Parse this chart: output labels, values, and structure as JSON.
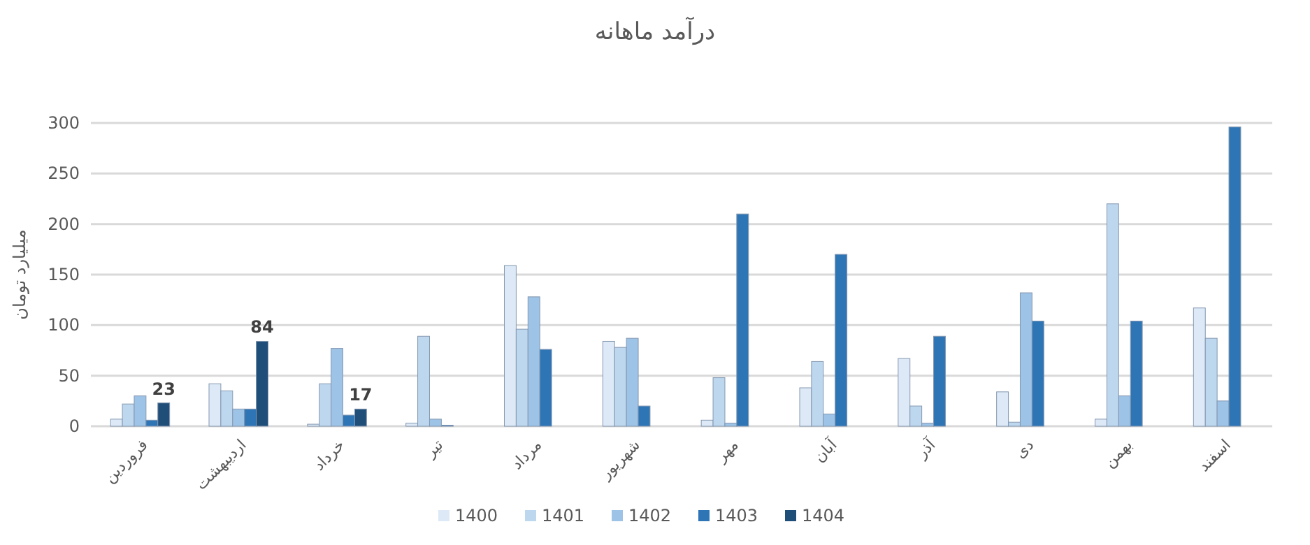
{
  "chart_data": {
    "type": "bar",
    "title": "درآمد ماهانه",
    "ylabel": "میلیارد تومان",
    "categories": [
      "فروردین",
      "اردیبهشت",
      "خرداد",
      "تیر",
      "مرداد",
      "شهریور",
      "مهر",
      "آبان",
      "آذر",
      "دی",
      "بهمن",
      "اسفند"
    ],
    "series": [
      {
        "name": "1400",
        "color": "#dde9f6",
        "values": [
          7,
          42,
          2,
          3,
          159,
          84,
          6,
          38,
          67,
          34,
          7,
          117
        ]
      },
      {
        "name": "1401",
        "color": "#bdd7ee",
        "values": [
          22,
          35,
          42,
          89,
          96,
          78,
          48,
          64,
          20,
          4,
          220,
          87
        ]
      },
      {
        "name": "1402",
        "color": "#9dc3e6",
        "values": [
          30,
          17,
          77,
          7,
          128,
          87,
          3,
          12,
          3,
          132,
          30,
          25
        ]
      },
      {
        "name": "1403",
        "color": "#2e75b6",
        "values": [
          6,
          17,
          11,
          1,
          76,
          20,
          210,
          170,
          89,
          104,
          104,
          296
        ]
      },
      {
        "name": "1404",
        "color": "#1f4e79",
        "values": [
          23,
          84,
          17,
          null,
          null,
          null,
          null,
          null,
          null,
          null,
          null,
          null
        ],
        "value_labels": [
          "23",
          "84",
          "17",
          null,
          null,
          null,
          null,
          null,
          null,
          null,
          null,
          null
        ]
      }
    ],
    "ylim": [
      0,
      300
    ],
    "yticks": [
      0,
      50,
      100,
      150,
      200,
      250,
      300
    ],
    "grid": "y",
    "legend": "bottom"
  }
}
